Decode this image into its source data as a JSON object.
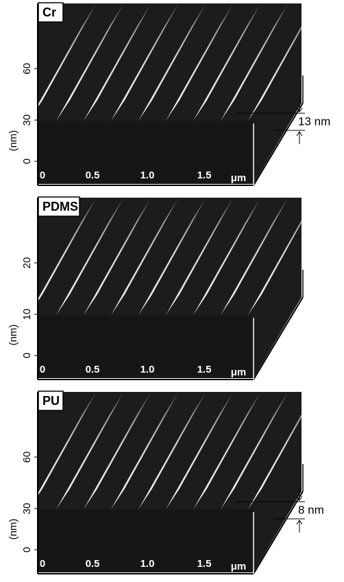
{
  "panels": [
    {
      "label": "Cr",
      "y_axis_label": "(nm)",
      "y_ticks": [
        "60",
        "30",
        "0"
      ],
      "x_ticks": [
        "0",
        "0.5",
        "1.0",
        "1.5"
      ],
      "x_unit": "μm",
      "annotation": "13 nm"
    },
    {
      "label": "PDMS",
      "y_axis_label": "(nm)",
      "y_ticks": [
        "20",
        "10",
        "0"
      ],
      "x_ticks": [
        "0",
        "0.5",
        "1.0",
        "1.5"
      ],
      "x_unit": "μm"
    },
    {
      "label": "PU",
      "y_axis_label": "(nm)",
      "y_ticks": [
        "60",
        "30",
        "0"
      ],
      "x_ticks": [
        "0",
        "0.5",
        "1.0",
        "1.5"
      ],
      "x_unit": "μm",
      "annotation": "8 nm"
    }
  ]
}
